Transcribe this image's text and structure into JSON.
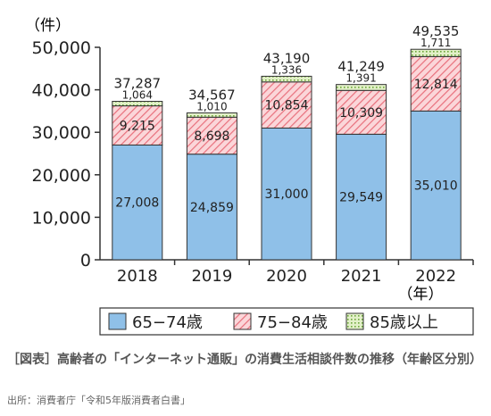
{
  "chart_data": {
    "type": "bar",
    "stacked": true,
    "y_unit": "（件）",
    "x_unit": "（年）",
    "ylim": [
      0,
      50000
    ],
    "yticks": [
      0,
      10000,
      20000,
      30000,
      40000,
      50000
    ],
    "ytick_labels": [
      "0",
      "10,000",
      "20,000",
      "30,000",
      "40,000",
      "50,000"
    ],
    "categories": [
      "2018",
      "2019",
      "2020",
      "2021",
      "2022"
    ],
    "series": [
      {
        "name": "65−74歳",
        "values": [
          27008,
          24859,
          31000,
          29549,
          35010
        ],
        "labels": [
          "27,008",
          "24,859",
          "31,000",
          "29,549",
          "35,010"
        ],
        "color": "#8fc0e8"
      },
      {
        "name": "75−84歳",
        "values": [
          9215,
          8698,
          10854,
          10309,
          12814
        ],
        "labels": [
          "9,215",
          "8,698",
          "10,854",
          "10,309",
          "12,814"
        ],
        "color": "#f2a0a8"
      },
      {
        "name": "85歳以上",
        "values": [
          1064,
          1010,
          1336,
          1391,
          1711
        ],
        "labels": [
          "1,064",
          "1,010",
          "1,336",
          "1,391",
          "1,711"
        ],
        "color": "#cfe6a8"
      }
    ],
    "totals": [
      37287,
      34567,
      43190,
      41249,
      49535
    ],
    "total_labels": [
      "37,287",
      "34,567",
      "43,190",
      "41,249",
      "49,535"
    ],
    "legend_position": "bottom",
    "grid": false
  },
  "caption": "［図表］高齢者の「インターネット通販」の消費生活相談件数の推移（年齢区分別）",
  "source": "出所：消費者庁「令和5年版消費者白書」"
}
